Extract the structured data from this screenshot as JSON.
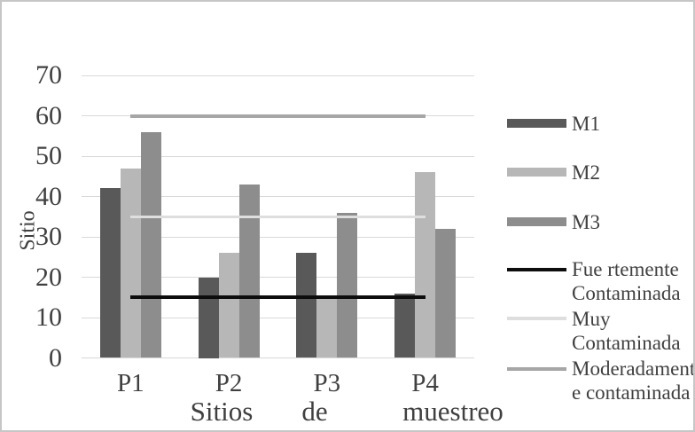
{
  "chart_data": {
    "type": "bar",
    "title": "",
    "categories": [
      "P1",
      "P2",
      "P3",
      "P4"
    ],
    "series": [
      {
        "name": "M1",
        "color": "#595959",
        "values": [
          42,
          20,
          26,
          16
        ]
      },
      {
        "name": "M2",
        "color": "#b7b7b7",
        "values": [
          47,
          26,
          15.5,
          46
        ]
      },
      {
        "name": "M3",
        "color": "#8d8d8d",
        "values": [
          56,
          43,
          36,
          32
        ]
      }
    ],
    "ref_lines": [
      {
        "name": "Fue rtemente Contaminada",
        "value": 15,
        "color": "#0d0d0d",
        "thickness": 4
      },
      {
        "name": "Muy Contaminada",
        "value": 35,
        "color": "#dedede",
        "thickness": 3
      },
      {
        "name": "Moderadamente e contaminada",
        "value": 60,
        "color": "#a6a6a6",
        "thickness": 4
      }
    ],
    "ylabel": "Sitio",
    "xlabel": "Sitios de muestreo",
    "xlabel_words": [
      "Sitios",
      "de",
      "muestreo"
    ],
    "ylim": [
      0,
      70
    ],
    "yticks": [
      0,
      10,
      20,
      30,
      40,
      50,
      60,
      70
    ],
    "grid": true,
    "legend_position": "right"
  },
  "legend": {
    "items": [
      {
        "label": "M1",
        "swatch": "bar",
        "color": "#595959"
      },
      {
        "label": "M2",
        "swatch": "bar",
        "color": "#b7b7b7"
      },
      {
        "label": "M3",
        "swatch": "bar",
        "color": "#8d8d8d"
      },
      {
        "label": "Fue rtemente\nContaminada",
        "swatch": "line",
        "color": "#0d0d0d"
      },
      {
        "label": "Muy\nContaminada",
        "swatch": "line",
        "color": "#dedede"
      },
      {
        "label": "Moderadamente\ne contaminada",
        "swatch": "line",
        "color": "#a6a6a6"
      }
    ]
  },
  "colors": {
    "background": "#ffffff",
    "border": "#c6c6c6",
    "gridline": "#d9d9d9",
    "text": "#404040"
  }
}
